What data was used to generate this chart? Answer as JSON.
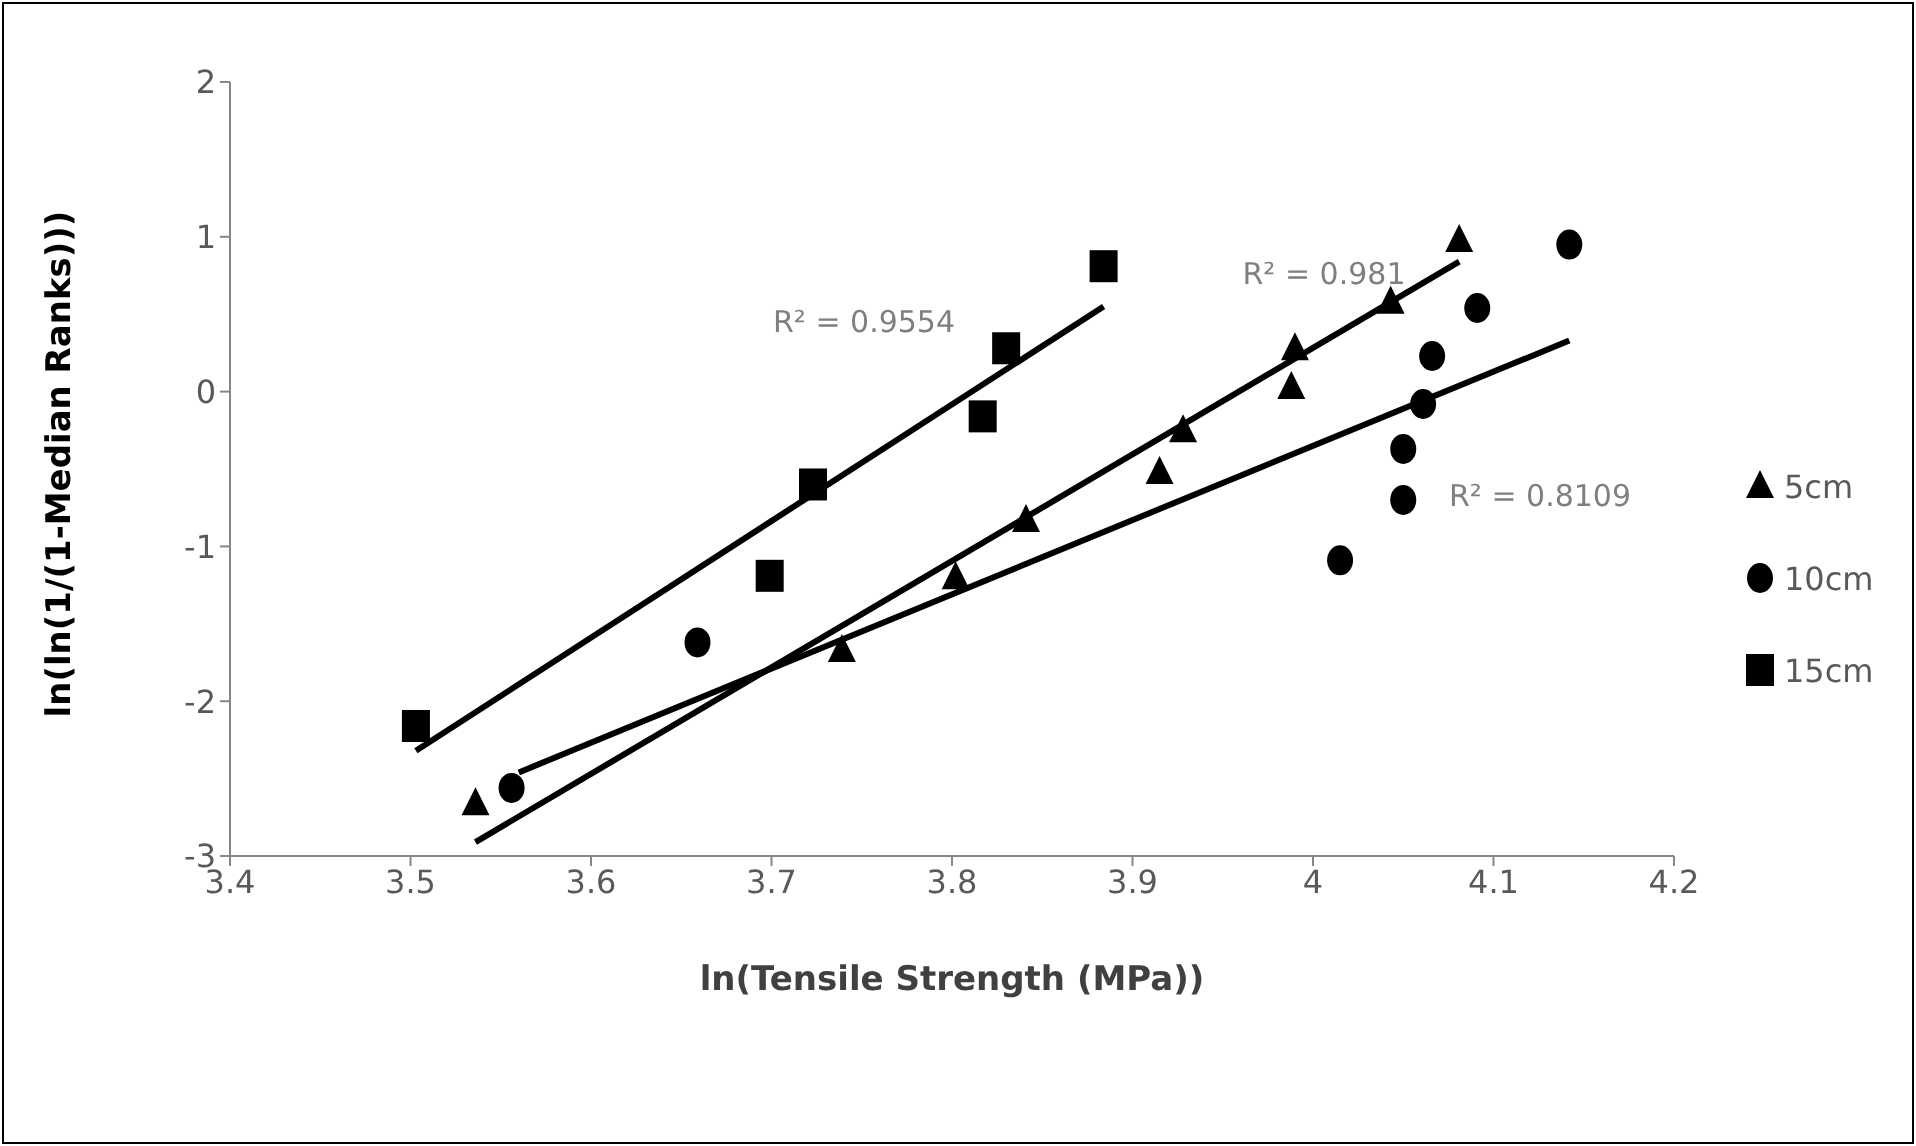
{
  "chart_data": {
    "type": "scatter",
    "xlabel": "ln(Tensile Strength (MPa))",
    "ylabel": "ln(ln(1/(1-Median Ranks)))",
    "xlim": [
      3.4,
      4.2
    ],
    "ylim": [
      -3,
      2
    ],
    "xticks": [
      3.4,
      3.5,
      3.6,
      3.7,
      3.8,
      3.9,
      {
        "value": 4,
        "label": "4"
      },
      4.1,
      4.2
    ],
    "yticks": [
      -3,
      -2,
      -1,
      0,
      1,
      2
    ],
    "grid": false,
    "legend": "right",
    "series": [
      {
        "name": "5cm",
        "color": "#000000",
        "marker": "triangle",
        "x": [
          3.536,
          3.739,
          3.802,
          3.841,
          3.915,
          3.928,
          3.988,
          3.99,
          4.043,
          4.081
        ],
        "values": [
          -2.66,
          -1.67,
          -1.2,
          -0.83,
          -0.52,
          -0.25,
          0.03,
          0.28,
          0.58,
          0.98
        ]
      },
      {
        "name": "10cm",
        "color": "#000000",
        "marker": "circle",
        "x": [
          3.556,
          3.659,
          4.015,
          4.05,
          4.05,
          4.061,
          4.066,
          4.091,
          4.142
        ],
        "values": [
          -2.56,
          -1.62,
          -1.09,
          -0.7,
          -0.37,
          -0.08,
          0.23,
          0.54,
          0.95
        ]
      },
      {
        "name": "15cm",
        "color": "#000000",
        "marker": "square",
        "x": [
          3.503,
          3.699,
          3.723,
          3.817,
          3.83,
          3.884
        ],
        "values": [
          -2.16,
          -1.19,
          -0.6,
          -0.16,
          0.28,
          0.81
        ]
      },
      {
        "type": "line",
        "color": "#000000",
        "marker": "none",
        "x": [
          3.503,
          3.884
        ],
        "values": [
          -2.32,
          0.55
        ]
      },
      {
        "type": "line",
        "color": "#000000",
        "marker": "none",
        "x": [
          3.536,
          4.081
        ],
        "values": [
          -2.91,
          0.84
        ]
      },
      {
        "type": "line",
        "color": "#000000",
        "marker": "none",
        "x": [
          3.56,
          4.142
        ],
        "values": [
          -2.46,
          0.33
        ]
      }
    ],
    "annotations": [
      "R² = 0.9554",
      "R² = 0.981",
      "R² = 0.8109"
    ]
  }
}
